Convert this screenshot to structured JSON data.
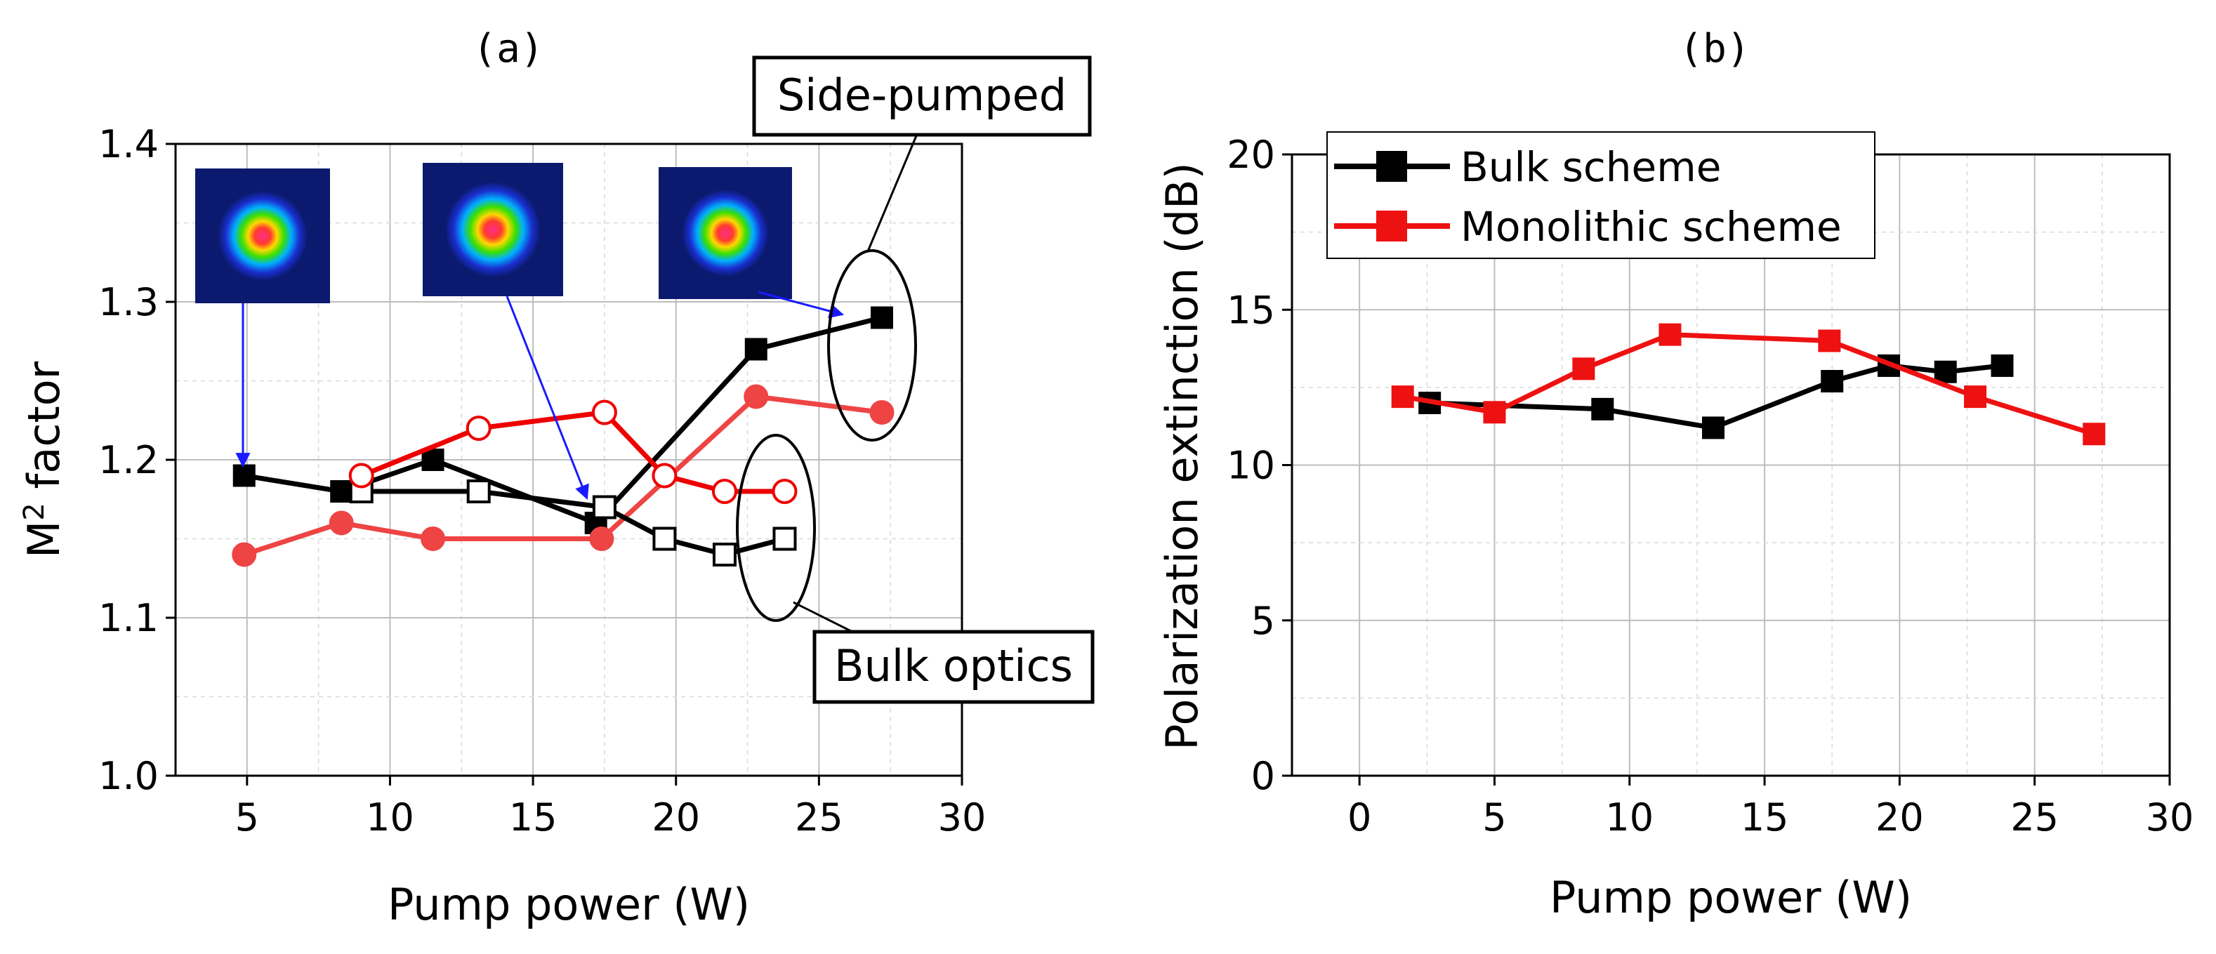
{
  "chart_data": [
    {
      "panel": "(a)",
      "type": "line",
      "xlabel": "Pump power (W)",
      "ylabel_main": "M",
      "ylabel_sup": "2",
      "ylabel_rest": " factor",
      "xlim": [
        2.5,
        30
      ],
      "ylim": [
        1.0,
        1.4
      ],
      "xticks": [
        5,
        10,
        15,
        20,
        25,
        30
      ],
      "yticks": [
        1.0,
        1.1,
        1.2,
        1.3,
        1.4
      ],
      "ytick_labels": [
        "1.0",
        "1.1",
        "1.2",
        "1.3",
        "1.4"
      ],
      "grid": true,
      "series": [
        {
          "name": "Side-pumped (black, filled)",
          "color": "#000000",
          "marker": "square",
          "filled": true,
          "x": [
            4.9,
            8.3,
            11.5,
            17.2,
            22.8,
            27.2
          ],
          "y": [
            1.19,
            1.18,
            1.2,
            1.16,
            1.27,
            1.29
          ]
        },
        {
          "name": "Side-pumped (red, filled)",
          "color": "#ee4444",
          "marker": "circle",
          "filled": true,
          "x": [
            4.9,
            8.3,
            11.5,
            17.4,
            22.8,
            27.2
          ],
          "y": [
            1.14,
            1.16,
            1.15,
            1.15,
            1.24,
            1.23
          ]
        },
        {
          "name": "Bulk optics (black, open)",
          "color": "#000000",
          "marker": "square",
          "filled": false,
          "x": [
            9.0,
            13.1,
            17.5,
            19.6,
            21.7,
            23.8
          ],
          "y": [
            1.18,
            1.18,
            1.17,
            1.15,
            1.14,
            1.15
          ]
        },
        {
          "name": "Bulk optics (red, open)",
          "color": "#ee0000",
          "marker": "circle",
          "filled": false,
          "x": [
            9.0,
            13.1,
            17.5,
            19.6,
            21.7,
            23.8
          ],
          "y": [
            1.19,
            1.22,
            1.23,
            1.19,
            1.18,
            1.18
          ]
        }
      ],
      "annotations": {
        "side_pumped": "Side-pumped",
        "bulk_optics": "Bulk optics"
      },
      "beam_profile_insets": 3
    },
    {
      "panel": "(b)",
      "type": "line",
      "xlabel": "Pump power (W)",
      "ylabel": "Polarization extinction (dB)",
      "xlim": [
        -2.5,
        30
      ],
      "ylim": [
        0,
        20
      ],
      "xticks": [
        0,
        5,
        10,
        15,
        20,
        25,
        30
      ],
      "yticks": [
        0,
        5,
        10,
        15,
        20
      ],
      "ytick_labels": [
        "0",
        "5",
        "10",
        "15",
        "20"
      ],
      "grid": true,
      "legend_position": "top-left",
      "series": [
        {
          "name": "Bulk scheme",
          "color": "#000000",
          "marker": "square",
          "filled": true,
          "x": [
            2.6,
            9.0,
            13.1,
            17.5,
            19.6,
            21.7,
            23.8
          ],
          "y": [
            12.0,
            11.8,
            11.2,
            12.7,
            13.2,
            13.0,
            13.2
          ]
        },
        {
          "name": "Monolithic scheme",
          "color": "#ee1111",
          "marker": "square",
          "filled": true,
          "x": [
            1.6,
            5.0,
            8.3,
            11.5,
            17.4,
            22.8,
            27.2
          ],
          "y": [
            12.2,
            11.7,
            13.1,
            14.2,
            14.0,
            12.2,
            11.0
          ]
        }
      ]
    }
  ]
}
